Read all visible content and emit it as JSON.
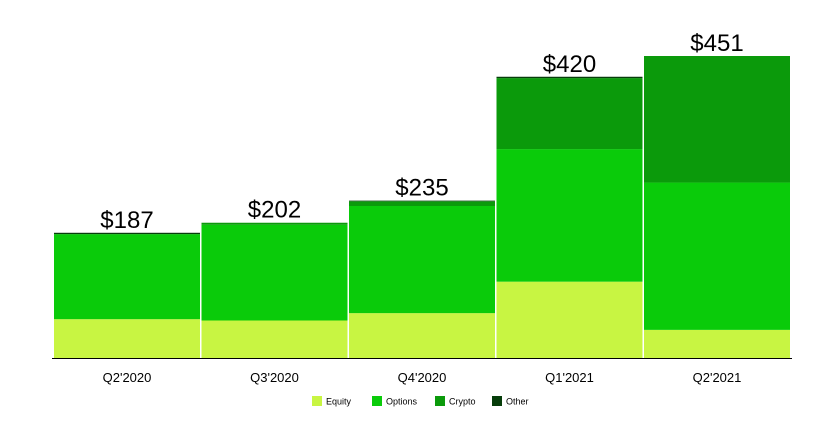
{
  "chart_data": {
    "type": "bar",
    "stacked": true,
    "categories": [
      "Q2'2020",
      "Q3'2020",
      "Q4'2020",
      "Q1'2021",
      "Q2'2021"
    ],
    "series": [
      {
        "name": "Equity",
        "color": "#c8f542",
        "values": [
          58,
          56,
          67,
          114,
          42
        ]
      },
      {
        "name": "Options",
        "color": "#0acb0a",
        "values": [
          127,
          143,
          160,
          198,
          220
        ]
      },
      {
        "name": "Crypto",
        "color": "#0b9a0b",
        "values": [
          0,
          3,
          7,
          106,
          189
        ]
      },
      {
        "name": "Other",
        "color": "#063d0a",
        "values": [
          2,
          0,
          1,
          2,
          0
        ]
      }
    ],
    "totals": [
      "$187",
      "$202",
      "$235",
      "$420",
      "$451"
    ],
    "total_values": [
      187,
      202,
      235,
      420,
      451
    ],
    "legend_position": "bottom",
    "grid": false,
    "ylim": [
      0,
      451
    ]
  }
}
